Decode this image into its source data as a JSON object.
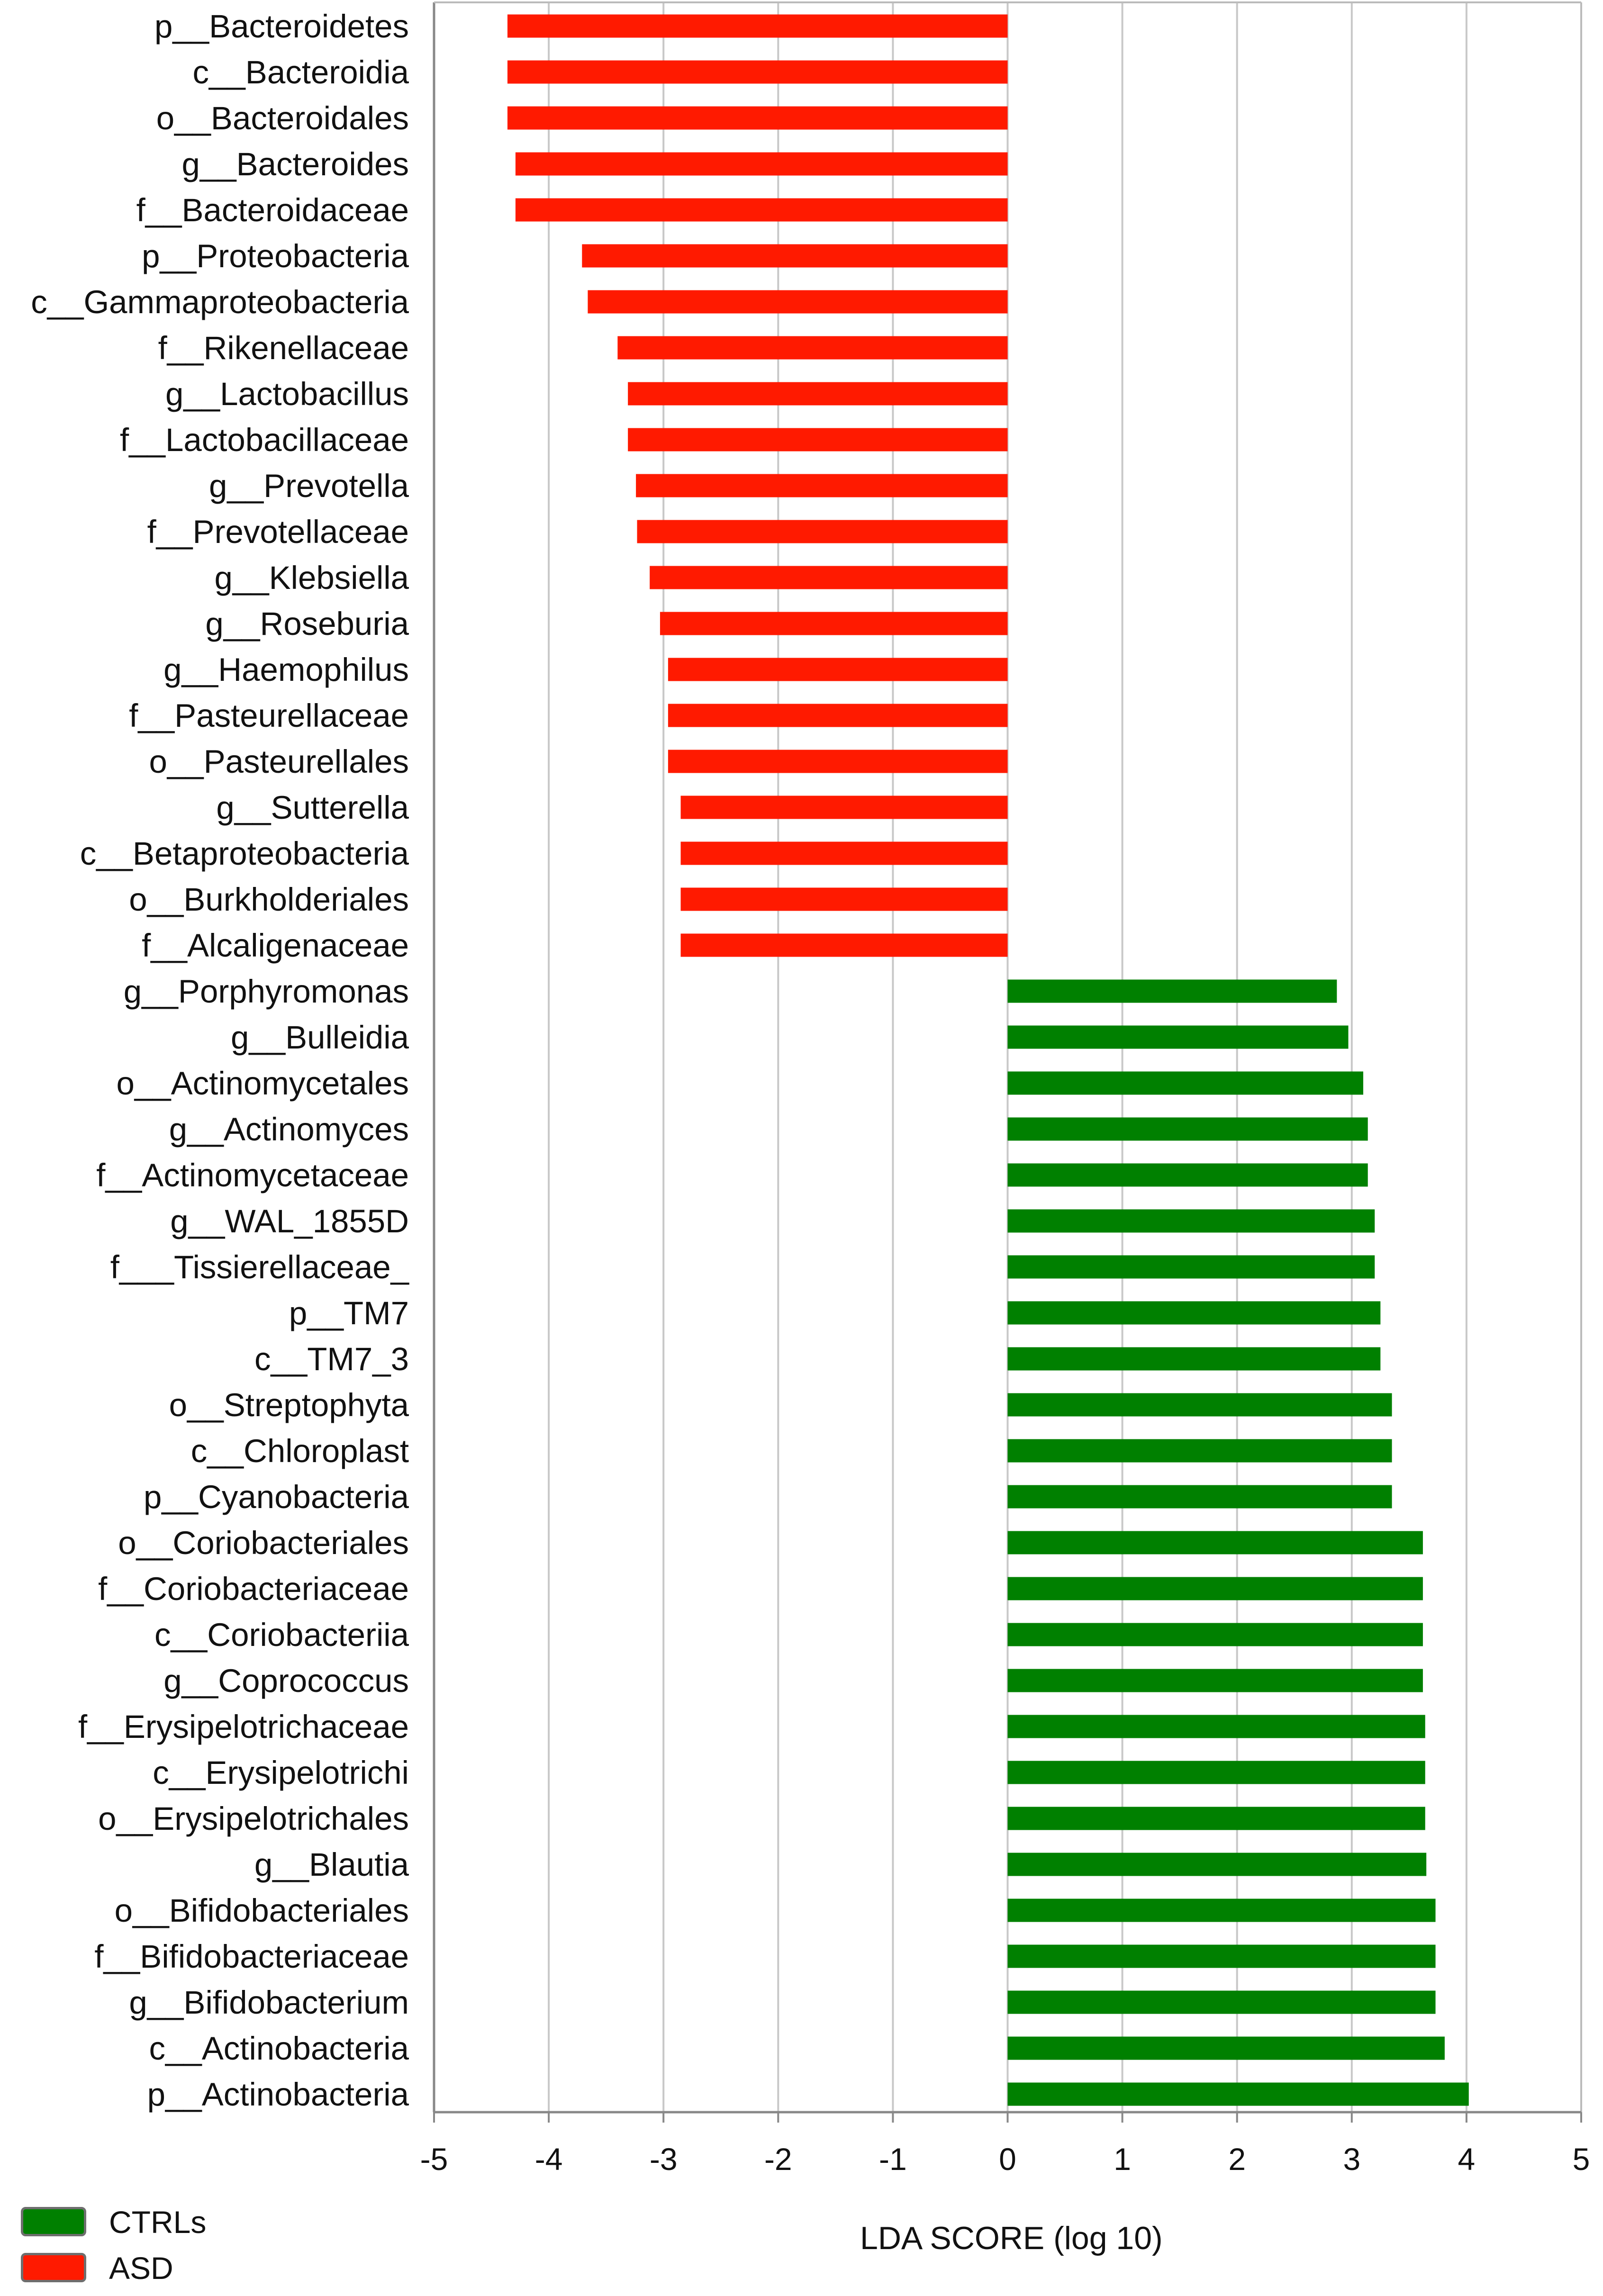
{
  "chart_data": {
    "type": "bar",
    "orientation": "horizontal",
    "xlabel": "LDA SCORE (log 10)",
    "xlim": [
      -5,
      5
    ],
    "xticks": [
      -5,
      -4,
      -3,
      -2,
      -1,
      0,
      1,
      2,
      3,
      4,
      5
    ],
    "grid": "vertical",
    "legend": [
      {
        "name": "CTRLs",
        "color": "#008000"
      },
      {
        "name": "ASD",
        "color": "#ff1a00"
      }
    ],
    "series": [
      {
        "name": "ASD",
        "color": "#ff1a00",
        "categories": [
          "p__Bacteroidetes",
          "c__Bacteroidia",
          "o__Bacteroidales",
          "g__Bacteroides",
          "f__Bacteroidaceae",
          "p__Proteobacteria",
          "c__Gammaproteobacteria",
          "f__Rikenellaceae",
          "g__Lactobacillus",
          "f__Lactobacillaceae",
          "g__Prevotella",
          "f__Prevotellaceae",
          "g__Klebsiella",
          "g__Roseburia",
          "g__Haemophilus",
          "f__Pasteurellaceae",
          "o__Pasteurellales",
          "g__Sutterella",
          "c__Betaproteobacteria",
          "o__Burkholderiales",
          "f__Alcaligenaceae"
        ],
        "values": [
          -4.36,
          -4.36,
          -4.36,
          -4.29,
          -4.29,
          -3.71,
          -3.66,
          -3.4,
          -3.31,
          -3.31,
          -3.24,
          -3.23,
          -3.12,
          -3.03,
          -2.96,
          -2.96,
          -2.96,
          -2.85,
          -2.85,
          -2.85,
          -2.85
        ]
      },
      {
        "name": "CTRLs",
        "color": "#008000",
        "categories": [
          "g__Porphyromonas",
          "g__Bulleidia",
          "o__Actinomycetales",
          "g__Actinomyces",
          "f__Actinomycetaceae",
          "g__WAL_1855D",
          "f___Tissierellaceae_",
          "p__TM7",
          "c__TM7_3",
          "o__Streptophyta",
          "c__Chloroplast",
          "p__Cyanobacteria",
          "o__Coriobacteriales",
          "f__Coriobacteriaceae",
          "c__Coriobacteriia",
          "g__Coprococcus",
          "f__Erysipelotrichaceae",
          "c__Erysipelotrichi",
          "o__Erysipelotrichales",
          "g__Blautia",
          "o__Bifidobacteriales",
          "f__Bifidobacteriaceae",
          "g__Bifidobacterium",
          "c__Actinobacteria",
          "p__Actinobacteria"
        ],
        "values": [
          2.87,
          2.97,
          3.1,
          3.14,
          3.14,
          3.2,
          3.2,
          3.25,
          3.25,
          3.35,
          3.35,
          3.35,
          3.62,
          3.62,
          3.62,
          3.62,
          3.64,
          3.64,
          3.64,
          3.65,
          3.73,
          3.73,
          3.73,
          3.81,
          4.02
        ]
      }
    ]
  }
}
